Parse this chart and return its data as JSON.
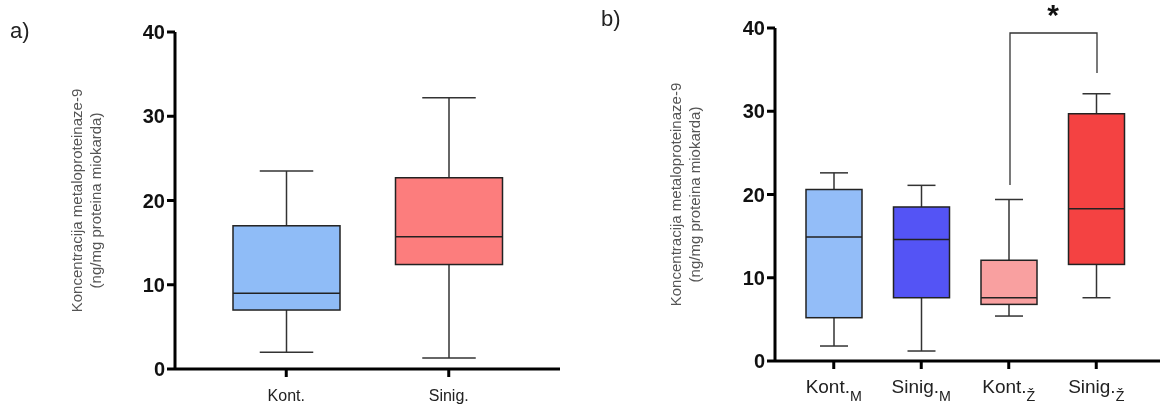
{
  "chart_data": [
    {
      "type": "box",
      "categories": [
        "Kont.",
        "Sinig."
      ],
      "colors": [
        "#8fbcf7",
        "#fc7d7d"
      ],
      "ylabel": "Koncentracija metaloproteinaze-9\n(ng/mg proteina miokarda)",
      "ylim": [
        0,
        40
      ],
      "yticks": [
        0,
        10,
        20,
        30,
        40
      ],
      "annotations": [
        "a)"
      ],
      "boxes": [
        {
          "low": 2.0,
          "q1": 7.0,
          "median": 9.0,
          "q3": 17.0,
          "high": 23.5
        },
        {
          "low": 1.3,
          "q1": 12.4,
          "median": 15.7,
          "q3": 22.7,
          "high": 32.2
        }
      ]
    },
    {
      "type": "box",
      "categories": [
        "Kont.$_{M}$",
        "Sinig.$_{M}$",
        "Kont.$_{Ž}$",
        "Sinig.$_{Ž}$"
      ],
      "colors": [
        "#93bdf8",
        "#5454f5",
        "#f9a0a0",
        "#f44242"
      ],
      "ylabel": "Koncentracija metaloproteinaze-9\n(ng/mg proteina miokarda)",
      "ylim": [
        0,
        40
      ],
      "yticks": [
        0,
        10,
        20,
        30,
        40
      ],
      "annotations": [
        "b)",
        "*"
      ],
      "boxes": [
        {
          "low": 1.8,
          "q1": 5.2,
          "median": 14.9,
          "q3": 20.6,
          "high": 22.6
        },
        {
          "low": 1.2,
          "q1": 7.6,
          "median": 14.6,
          "q3": 18.5,
          "high": 21.1
        },
        {
          "low": 5.4,
          "q1": 6.8,
          "median": 7.6,
          "q3": 12.1,
          "high": 19.4
        },
        {
          "low": 7.6,
          "q1": 11.6,
          "median": 18.3,
          "q3": 29.7,
          "high": 32.1
        }
      ]
    }
  ]
}
